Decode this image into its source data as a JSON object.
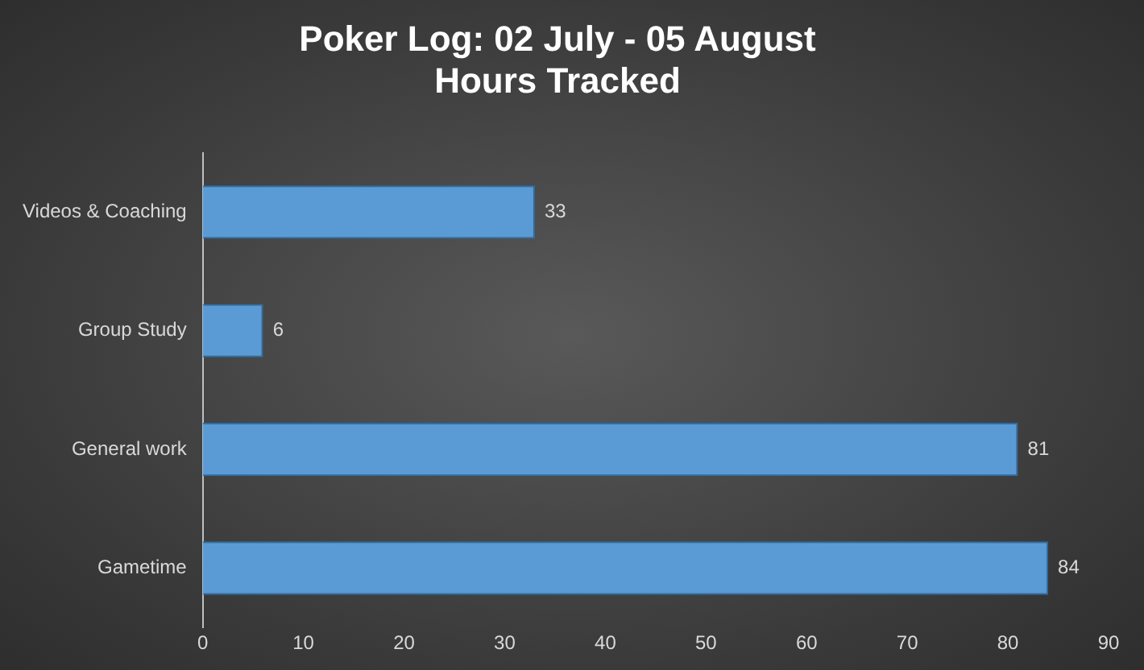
{
  "chart_data": {
    "type": "bar",
    "orientation": "horizontal",
    "title": "Poker Log: 02 July - 05 August\nHours Tracked",
    "categories": [
      "Videos & Coaching",
      "Group Study",
      "General work",
      "Gametime"
    ],
    "values": [
      33,
      6,
      81,
      84
    ],
    "color": "#5b9bd5",
    "xlim": [
      0,
      90
    ],
    "xticks": [
      0,
      10,
      20,
      30,
      40,
      50,
      60,
      70,
      80,
      90
    ],
    "grid": false,
    "data_labels": true,
    "legend": false
  }
}
